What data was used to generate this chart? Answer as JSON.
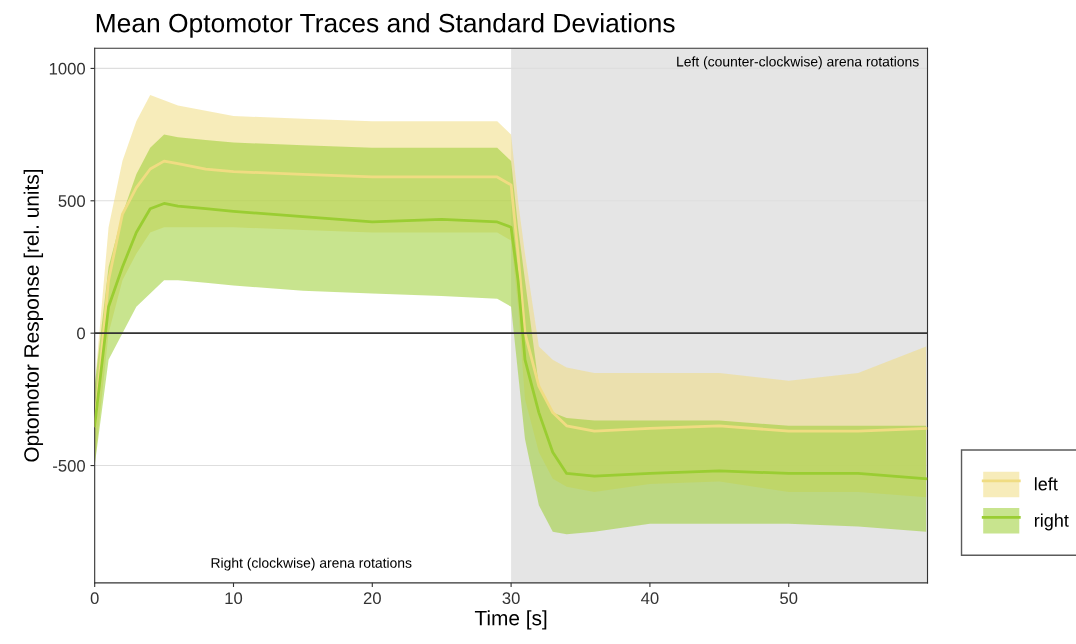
{
  "chart_data": {
    "type": "line",
    "title": "Mean Optomotor Traces and Standard Deviations",
    "xlabel": "Time [s]",
    "ylabel": "Optomotor Response [rel. units]",
    "xlim": [
      0,
      60
    ],
    "ylim": [
      -943,
      1076
    ],
    "xticks": [
      0,
      10,
      20,
      30,
      40,
      50
    ],
    "yticks": [
      {
        "value": -500,
        "label": "-500"
      },
      0,
      500,
      1000
    ],
    "grid": "y",
    "legend": "right",
    "marker": "none",
    "line_style": "solid",
    "series": [
      {
        "name": "left",
        "color": "#f0dc82",
        "x": [
          0,
          1,
          2,
          3,
          4,
          5,
          6,
          8,
          10,
          15,
          20,
          25,
          29,
          30,
          30.5,
          31,
          32,
          33,
          34,
          36,
          40,
          45,
          50,
          55,
          59.9
        ],
        "values": [
          -350,
          200,
          450,
          550,
          620,
          650,
          640,
          620,
          610,
          600,
          590,
          590,
          590,
          560,
          300,
          0,
          -200,
          -300,
          -350,
          -370,
          -360,
          -350,
          -370,
          -370,
          -360
        ],
        "upper": [
          -200,
          400,
          650,
          800,
          900,
          880,
          860,
          840,
          820,
          810,
          800,
          800,
          800,
          750,
          500,
          300,
          -50,
          -100,
          -130,
          -150,
          -150,
          -150,
          -180,
          -150,
          -50
        ],
        "lower": [
          -500,
          0,
          200,
          300,
          380,
          400,
          400,
          400,
          400,
          390,
          380,
          380,
          380,
          350,
          100,
          -250,
          -450,
          -550,
          -580,
          -600,
          -570,
          -560,
          -600,
          -600,
          -620
        ]
      },
      {
        "name": "right",
        "color": "#9acd32",
        "x": [
          0,
          1,
          2,
          3,
          4,
          5,
          6,
          8,
          10,
          15,
          20,
          25,
          29,
          30,
          30.5,
          31,
          32,
          33,
          34,
          36,
          40,
          45,
          50,
          55,
          59.9
        ],
        "values": [
          -350,
          100,
          250,
          380,
          470,
          490,
          480,
          470,
          460,
          440,
          420,
          430,
          420,
          400,
          200,
          -100,
          -300,
          -450,
          -530,
          -540,
          -530,
          -520,
          -530,
          -530,
          -550
        ],
        "upper": [
          -200,
          250,
          450,
          600,
          700,
          750,
          740,
          730,
          720,
          710,
          700,
          700,
          700,
          650,
          400,
          200,
          -200,
          -300,
          -320,
          -330,
          -330,
          -330,
          -350,
          -350,
          -350
        ],
        "lower": [
          -500,
          -100,
          0,
          100,
          150,
          200,
          200,
          190,
          180,
          160,
          150,
          140,
          130,
          100,
          -150,
          -400,
          -650,
          -750,
          -760,
          -750,
          -720,
          -720,
          -720,
          -730,
          -750
        ]
      }
    ],
    "ref_lines": [
      {
        "axis": "y",
        "value": 0,
        "color": "#333333"
      }
    ],
    "bands": [
      {
        "axis": "x",
        "from": 30,
        "to": 60,
        "label": "Left (counter-clockwise) arena rotations",
        "color": "#e5e5e5"
      }
    ],
    "annotations": [
      "Right (clockwise) arena rotations"
    ]
  }
}
